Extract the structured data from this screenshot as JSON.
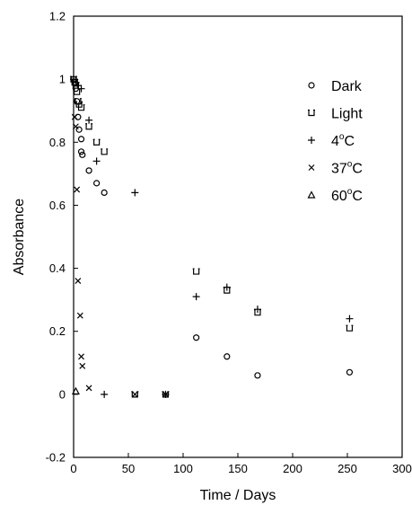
{
  "chart_data": {
    "type": "scatter",
    "title": "",
    "xlabel": "Time / Days",
    "ylabel": "Absorbance",
    "xlim": [
      0,
      300
    ],
    "ylim": [
      -0.2,
      1.2
    ],
    "x_ticks": [
      0,
      50,
      100,
      150,
      200,
      250,
      300
    ],
    "y_ticks": [
      -0.2,
      0,
      0.2,
      0.4,
      0.6,
      0.8,
      1,
      1.2
    ],
    "x_tick_labels": [
      "0",
      "50",
      "100",
      "150",
      "200",
      "250",
      "300"
    ],
    "y_tick_labels": [
      "-0.2",
      "0",
      "0.2",
      "0.4",
      "0.6",
      "0.8",
      "1",
      "1.2"
    ],
    "grid": false,
    "legend_position": "top-right",
    "legend": [
      {
        "label": "Dark",
        "marker": "circle"
      },
      {
        "label": "Light",
        "marker": "square-open"
      },
      {
        "label_main": "4",
        "label_sup": "o",
        "label_tail": "C",
        "marker": "plus"
      },
      {
        "label_main": "37",
        "label_sup": "o",
        "label_tail": "C",
        "marker": "x"
      },
      {
        "label_main": "60",
        "label_sup": "o",
        "label_tail": "C",
        "marker": "triangle"
      }
    ],
    "series": [
      {
        "marker": "circle",
        "points": [
          [
            0,
            1.0
          ],
          [
            1,
            0.99
          ],
          [
            2,
            0.97
          ],
          [
            3,
            0.93
          ],
          [
            4,
            0.88
          ],
          [
            5,
            0.84
          ],
          [
            7,
            0.81
          ],
          [
            7,
            0.77
          ],
          [
            8,
            0.76
          ],
          [
            14,
            0.71
          ],
          [
            21,
            0.67
          ],
          [
            28,
            0.64
          ],
          [
            112,
            0.18
          ],
          [
            140,
            0.12
          ],
          [
            168,
            0.06
          ],
          [
            252,
            0.07
          ]
        ]
      },
      {
        "marker": "square-open",
        "points": [
          [
            0,
            1.0
          ],
          [
            1,
            0.99
          ],
          [
            2,
            0.98
          ],
          [
            3,
            0.96
          ],
          [
            4,
            0.93
          ],
          [
            5,
            0.92
          ],
          [
            7,
            0.91
          ],
          [
            14,
            0.85
          ],
          [
            21,
            0.8
          ],
          [
            28,
            0.77
          ],
          [
            56,
            0.0
          ],
          [
            84,
            0.0
          ],
          [
            112,
            0.39
          ],
          [
            140,
            0.33
          ],
          [
            168,
            0.26
          ],
          [
            252,
            0.21
          ]
        ]
      },
      {
        "marker": "plus",
        "points": [
          [
            0,
            1.0
          ],
          [
            2,
            0.99
          ],
          [
            4,
            0.98
          ],
          [
            7,
            0.97
          ],
          [
            14,
            0.87
          ],
          [
            21,
            0.74
          ],
          [
            28,
            0.0
          ],
          [
            56,
            0.64
          ],
          [
            84,
            0.0
          ],
          [
            112,
            0.31
          ],
          [
            140,
            0.34
          ],
          [
            168,
            0.27
          ],
          [
            252,
            0.24
          ]
        ]
      },
      {
        "marker": "x",
        "points": [
          [
            1,
            0.88
          ],
          [
            2,
            0.85
          ],
          [
            3,
            0.65
          ],
          [
            4,
            0.36
          ],
          [
            6,
            0.25
          ],
          [
            7,
            0.12
          ],
          [
            8,
            0.09
          ],
          [
            14,
            0.02
          ],
          [
            56,
            0.0
          ],
          [
            84,
            0.0
          ]
        ]
      },
      {
        "marker": "triangle",
        "points": [
          [
            2,
            0.01
          ]
        ]
      }
    ]
  }
}
